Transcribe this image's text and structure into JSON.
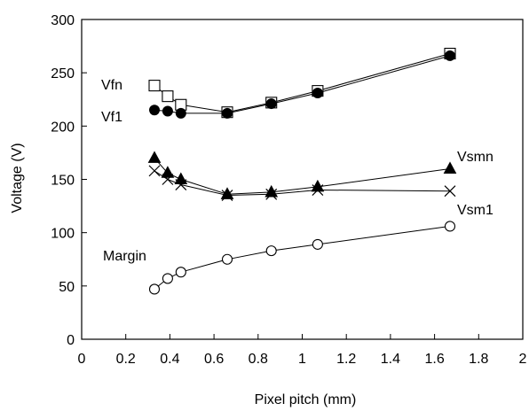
{
  "chart_data": {
    "type": "line",
    "xlabel": "Pixel  pitch (mm)",
    "ylabel": "Voltage (V)",
    "xlim": [
      0,
      2
    ],
    "ylim": [
      0,
      300
    ],
    "xticks": [
      "0",
      "0.2",
      "0.4",
      "0.6",
      "0.8",
      "1",
      "1.2",
      "1.4",
      "1.6",
      "1.8",
      "2"
    ],
    "yticks": [
      "0",
      "50",
      "100",
      "150",
      "200",
      "250",
      "300"
    ],
    "grid": false,
    "legend": "none",
    "series": [
      {
        "name": "Vfn",
        "marker": "square-open",
        "x": [
          0.33,
          0.39,
          0.45,
          0.66,
          0.86,
          1.07,
          1.67
        ],
        "y": [
          238,
          228,
          220,
          213,
          222,
          233,
          268
        ]
      },
      {
        "name": "Vf1",
        "marker": "circle-filled",
        "x": [
          0.33,
          0.39,
          0.45,
          0.66,
          0.86,
          1.07,
          1.67
        ],
        "y": [
          215,
          214,
          212,
          212,
          221,
          231,
          266
        ]
      },
      {
        "name": "Vsmn",
        "marker": "triangle-filled",
        "x": [
          0.33,
          0.39,
          0.45,
          0.66,
          0.86,
          1.07,
          1.67
        ],
        "y": [
          170,
          156,
          150,
          136,
          138,
          143,
          160
        ]
      },
      {
        "name": "Vsm1",
        "marker": "cross",
        "x": [
          0.33,
          0.39,
          0.45,
          0.66,
          0.86,
          1.07,
          1.67
        ],
        "y": [
          158,
          150,
          145,
          135,
          136,
          140,
          139
        ]
      },
      {
        "name": "Margin",
        "marker": "circle-open",
        "x": [
          0.33,
          0.39,
          0.45,
          0.66,
          0.86,
          1.07,
          1.67
        ],
        "y": [
          47,
          57,
          63,
          75,
          83,
          89,
          106
        ]
      }
    ],
    "annotations": [
      "Vfn",
      "Vf1",
      "Vsmn",
      "Vsm1",
      "Margin"
    ]
  }
}
